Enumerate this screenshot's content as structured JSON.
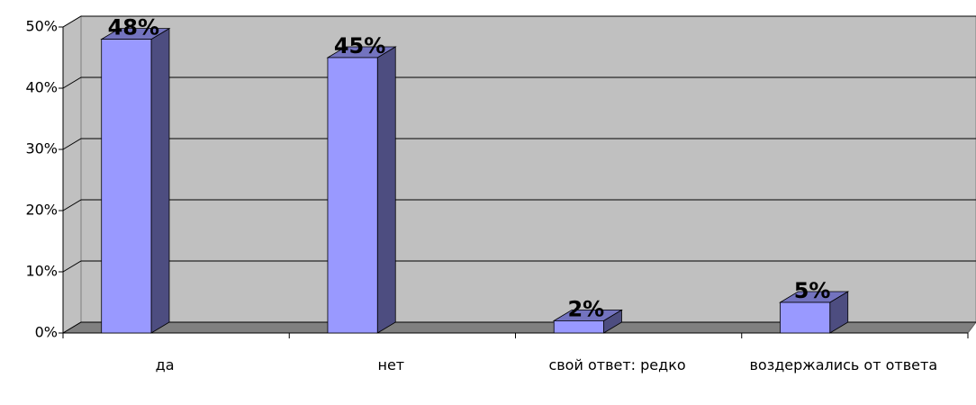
{
  "chart_data": {
    "type": "bar3d",
    "categories": [
      "да",
      "нет",
      "свой ответ: редко",
      "воздержались от ответа"
    ],
    "values": [
      48,
      45,
      2,
      5
    ],
    "value_labels": [
      "48%",
      "45%",
      "2%",
      "5%"
    ],
    "color": "#9999ff",
    "ylim": [
      0,
      50
    ],
    "yticks": [
      {
        "value": 0,
        "label": "0%"
      },
      {
        "value": 10,
        "label": "10%"
      },
      {
        "value": 20,
        "label": "20%"
      },
      {
        "value": 30,
        "label": "30%"
      },
      {
        "value": 40,
        "label": "40%"
      },
      {
        "value": 50,
        "label": "50%"
      }
    ],
    "grid": true
  }
}
